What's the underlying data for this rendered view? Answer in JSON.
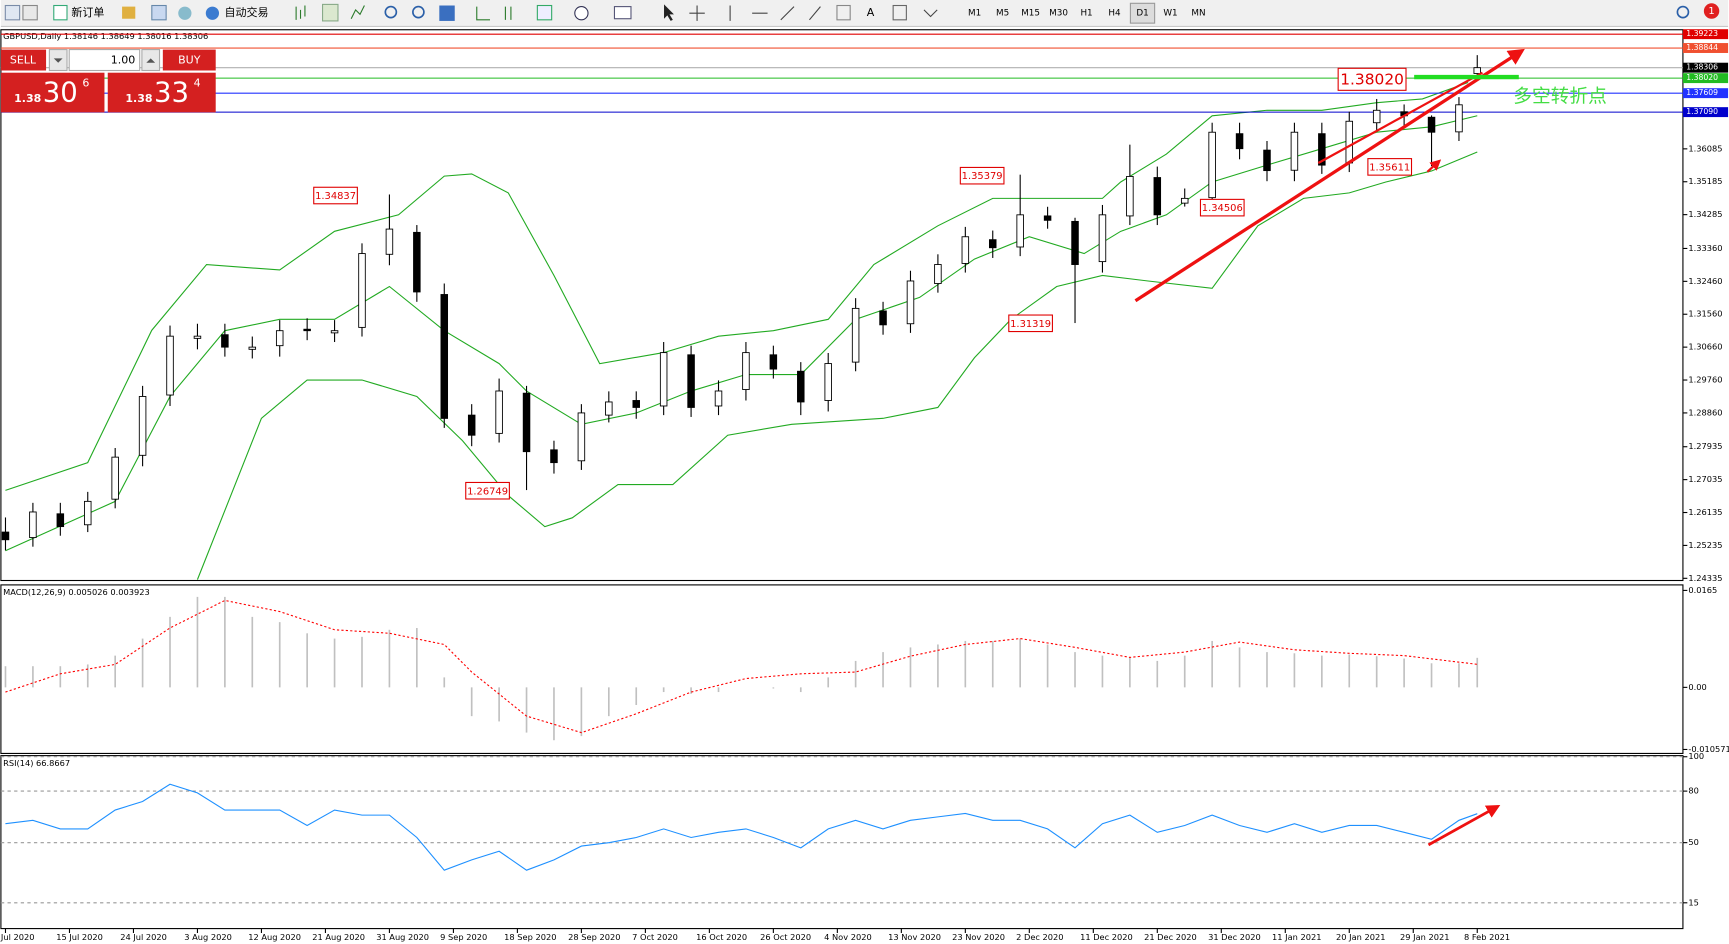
{
  "toolbar": {
    "new_order": "新订单",
    "auto_trading": "自动交易",
    "text_tool": "A",
    "timeframes": [
      "M1",
      "M5",
      "M15",
      "M30",
      "H1",
      "H4",
      "D1",
      "W1",
      "MN"
    ],
    "notifications": "1"
  },
  "trade_panel": {
    "sell": "SELL",
    "buy": "BUY",
    "lots": "1.00",
    "bid": {
      "big_figure": "1.38",
      "pips": "30",
      "fraction": "6"
    },
    "ask": {
      "big_figure": "1.38",
      "pips": "33",
      "fraction": "4"
    }
  },
  "chart_data": [
    {
      "type": "candlestick",
      "title": "GBPUSD,Daily 1.38146 1.38649 1.38016 1.38306",
      "x": [
        0,
        3,
        6,
        9,
        12,
        15,
        18,
        21,
        24,
        27,
        30,
        33,
        36,
        39,
        42,
        45,
        48,
        51,
        54,
        57,
        60,
        63,
        66,
        69,
        72,
        75,
        78,
        81,
        84,
        87,
        90,
        93,
        96,
        99,
        102,
        105,
        108,
        111,
        114,
        117,
        120,
        123,
        126,
        129,
        132,
        135,
        138,
        141,
        144,
        147,
        150,
        153,
        156,
        159,
        161
      ],
      "open": [
        1.256,
        1.2545,
        1.261,
        1.258,
        1.265,
        1.277,
        1.2935,
        1.309,
        1.31,
        1.306,
        1.307,
        1.3115,
        1.3105,
        1.312,
        1.332,
        1.338,
        1.321,
        1.288,
        1.283,
        1.294,
        1.2785,
        1.2755,
        1.288,
        1.292,
        1.2905,
        1.3045,
        1.2905,
        1.295,
        1.3045,
        1.3,
        1.292,
        1.3025,
        1.3165,
        1.313,
        1.324,
        1.3295,
        1.336,
        1.334,
        1.3425,
        1.341,
        1.33,
        1.3425,
        1.353,
        1.346,
        1.3475,
        1.365,
        1.3605,
        1.355,
        1.365,
        1.357,
        1.368,
        1.371,
        1.3695,
        1.3655,
        1.38146
      ],
      "high": [
        1.26,
        1.264,
        1.264,
        1.267,
        1.279,
        1.296,
        1.3125,
        1.313,
        1.313,
        1.3095,
        1.314,
        1.3145,
        1.314,
        1.335,
        1.34837,
        1.34,
        1.324,
        1.291,
        1.298,
        1.296,
        1.281,
        1.291,
        1.2945,
        1.2945,
        1.308,
        1.307,
        1.2975,
        1.308,
        1.307,
        1.3025,
        1.305,
        1.32,
        1.319,
        1.3275,
        1.332,
        1.3395,
        1.3385,
        1.35379,
        1.345,
        1.342,
        1.3455,
        1.362,
        1.356,
        1.35,
        1.368,
        1.368,
        1.363,
        1.368,
        1.368,
        1.371,
        1.3745,
        1.373,
        1.37,
        1.375,
        1.38649
      ],
      "low": [
        1.251,
        1.252,
        1.255,
        1.256,
        1.2625,
        1.274,
        1.2905,
        1.306,
        1.304,
        1.3035,
        1.304,
        1.3085,
        1.308,
        1.3095,
        1.329,
        1.319,
        1.2845,
        1.2795,
        1.2805,
        1.26749,
        1.272,
        1.273,
        1.286,
        1.287,
        1.288,
        1.2875,
        1.288,
        1.292,
        1.298,
        1.288,
        1.289,
        1.3,
        1.31,
        1.3105,
        1.3215,
        1.327,
        1.331,
        1.3315,
        1.339,
        1.31319,
        1.327,
        1.34,
        1.34,
        1.34506,
        1.345,
        1.358,
        1.352,
        1.352,
        1.354,
        1.3545,
        1.3655,
        1.367,
        1.35611,
        1.363,
        1.38016
      ],
      "close": [
        1.2539,
        1.2615,
        1.2575,
        1.2644,
        1.2765,
        1.2931,
        1.3096,
        1.3096,
        1.3066,
        1.3066,
        1.3111,
        1.3111,
        1.3111,
        1.3322,
        1.3389,
        1.3217,
        1.2871,
        1.2825,
        1.2946,
        1.278,
        1.275,
        1.2886,
        1.2916,
        1.2901,
        1.3051,
        1.2901,
        1.2946,
        1.3051,
        1.3006,
        1.2916,
        1.3021,
        1.3172,
        1.3127,
        1.3247,
        1.3292,
        1.3368,
        1.3338,
        1.3428,
        1.3413,
        1.3292,
        1.3428,
        1.3533,
        1.3428,
        1.3473,
        1.3654,
        1.3609,
        1.3549,
        1.3654,
        1.3564,
        1.3684,
        1.3714,
        1.3699,
        1.3654,
        1.3729,
        1.38306
      ],
      "up_color": "#ffffff",
      "down_color": "#000000",
      "bands": [
        {
          "color": "#22aa22",
          "x": [
            0,
            9,
            16,
            22,
            30,
            36,
            43,
            48,
            51,
            55,
            60,
            65,
            72,
            78,
            84,
            90,
            95,
            102,
            108,
            114,
            120,
            122,
            127,
            132,
            138,
            144,
            150,
            155,
            160
          ],
          "values": [
            1.2674,
            1.275,
            1.3112,
            1.3292,
            1.3277,
            1.3383,
            1.3428,
            1.3534,
            1.354,
            1.3488,
            1.3262,
            1.3021,
            1.3051,
            1.3096,
            1.3111,
            1.3142,
            1.3292,
            1.3398,
            1.3473,
            1.3473,
            1.3473,
            1.3518,
            1.3594,
            1.3699,
            1.3714,
            1.3714,
            1.3735,
            1.3745,
            1.379
          ]
        },
        {
          "color": "#22aa22",
          "x": [
            0,
            12,
            18,
            24,
            30,
            36,
            42,
            48,
            54,
            57,
            63,
            69,
            75,
            81,
            87,
            93,
            100,
            106,
            112,
            118,
            122,
            127,
            132,
            138,
            144,
            150,
            156,
            161
          ],
          "values": [
            1.2509,
            1.2644,
            1.2931,
            1.3111,
            1.3142,
            1.3142,
            1.3232,
            1.3111,
            1.3021,
            1.2946,
            1.2855,
            1.2886,
            1.2946,
            1.2991,
            1.2991,
            1.3142,
            1.3202,
            1.3307,
            1.3368,
            1.3322,
            1.3383,
            1.3428,
            1.3518,
            1.3564,
            1.3609,
            1.3654,
            1.3669,
            1.3699
          ]
        },
        {
          "color": "#22aa22",
          "x": [
            21,
            28,
            33,
            39,
            45,
            50,
            55,
            59,
            62,
            67,
            73,
            79,
            86,
            96,
            102,
            106,
            110,
            115,
            120,
            125,
            132,
            137,
            142,
            147,
            151,
            156,
            161
          ],
          "values": [
            1.243,
            1.2871,
            1.2976,
            1.2976,
            1.2931,
            1.281,
            1.266,
            1.2575,
            1.2599,
            1.269,
            1.269,
            1.2825,
            1.2855,
            1.2871,
            1.2901,
            1.3037,
            1.3142,
            1.3232,
            1.3262,
            1.3247,
            1.3227,
            1.3398,
            1.3473,
            1.3488,
            1.3518,
            1.3548,
            1.36
          ]
        }
      ],
      "levels": [
        {
          "value": 1.39223,
          "color": "#e00000"
        },
        {
          "value": 1.38844,
          "color": "#f05030"
        },
        {
          "value": 1.38306,
          "color": "#000000",
          "line_color": "#b0b0b0"
        },
        {
          "value": 1.3802,
          "label": "1.38020",
          "color": "#22bb22"
        },
        {
          "value": 1.37609,
          "color": "#2233ff"
        },
        {
          "value": 1.3709,
          "label": "1.37090",
          "color": "#0000cc"
        }
      ],
      "annotations": [
        "1.34837",
        "1.26749",
        "1.35379",
        "1.31319",
        "1.34506",
        "1.35611",
        "1.38020"
      ],
      "note": "多空转折点",
      "xlim": [
        -0.5,
        183.5
      ],
      "ylim": [
        1.24275,
        1.39344
      ],
      "yticks": [
        1.24335,
        1.25235,
        1.26135,
        1.27035,
        1.27935,
        {
          "value": 1.2886,
          "label": "1.28860"
        },
        {
          "value": 1.2976,
          "label": "1.29760"
        },
        {
          "value": 1.3066,
          "label": "1.30660"
        },
        {
          "value": 1.3156,
          "label": "1.31560"
        },
        {
          "value": 1.3246,
          "label": "1.32460"
        },
        {
          "value": 1.3336,
          "label": "1.33360"
        },
        1.34285,
        1.35185,
        1.36085
      ]
    },
    {
      "type": "macd",
      "title": "MACD(12,26,9) 0.005026 0.003923",
      "x": [
        0,
        3,
        6,
        9,
        12,
        15,
        18,
        21,
        24,
        27,
        30,
        33,
        36,
        39,
        42,
        45,
        48,
        51,
        54,
        57,
        60,
        63,
        66,
        69,
        72,
        75,
        78,
        81,
        84,
        87,
        90,
        93,
        96,
        99,
        102,
        105,
        108,
        111,
        114,
        117,
        120,
        123,
        126,
        129,
        132,
        135,
        138,
        141,
        144,
        147,
        150,
        153,
        156,
        159,
        161
      ],
      "values": [
        0.0036,
        0.0036,
        0.0036,
        0.0039,
        0.0054,
        0.0083,
        0.012,
        0.0154,
        0.0154,
        0.012,
        0.0111,
        0.0092,
        0.0083,
        0.0086,
        0.0098,
        0.0101,
        0.0017,
        -0.0049,
        -0.0058,
        -0.0077,
        -0.009,
        -0.0083,
        -0.0049,
        -0.003,
        -0.0008,
        -0.0011,
        -0.0008,
        0,
        -0.0002,
        -0.0008,
        0.0017,
        0.0045,
        0.006,
        0.0068,
        0.0073,
        0.0079,
        0.0079,
        0.0083,
        0.0073,
        0.006,
        0.0054,
        0.0051,
        0.0045,
        0.0054,
        0.0079,
        0.0068,
        0.006,
        0.0058,
        0.0054,
        0.0056,
        0.0053,
        0.0049,
        0.0041,
        0.0041,
        0.005026
      ],
      "color": "#c0c0c0",
      "signal": {
        "color": "#ff0000",
        "x": [
          0,
          6,
          12,
          18,
          24,
          30,
          36,
          42,
          48,
          51,
          57,
          63,
          69,
          75,
          81,
          87,
          93,
          99,
          105,
          111,
          117,
          123,
          129,
          135,
          141,
          147,
          153,
          161
        ],
        "values": [
          -0.0008,
          0.0023,
          0.0039,
          0.0101,
          0.0148,
          0.0129,
          0.0098,
          0.0092,
          0.0073,
          0.0026,
          -0.0049,
          -0.0077,
          -0.0045,
          -0.0008,
          0.0015,
          0.0023,
          0.0026,
          0.0053,
          0.0073,
          0.0083,
          0.0068,
          0.0051,
          0.006,
          0.0077,
          0.0064,
          0.0058,
          0.0054,
          0.003923
        ]
      },
      "xlim": [
        -0.5,
        183.5
      ],
      "ylim": [
        -0.01106,
        0.01725
      ],
      "yticks": [
        0.0165,
        {
          "value": 0,
          "label": "0.00"
        },
        -0.010571
      ]
    },
    {
      "type": "line",
      "title": "RSI(14) 66.8667",
      "x": [
        0,
        3,
        6,
        9,
        12,
        15,
        18,
        21,
        24,
        27,
        30,
        33,
        36,
        39,
        42,
        45,
        48,
        51,
        54,
        57,
        60,
        63,
        66,
        69,
        72,
        75,
        78,
        81,
        84,
        87,
        90,
        93,
        96,
        99,
        102,
        105,
        108,
        111,
        114,
        117,
        120,
        123,
        126,
        129,
        132,
        135,
        138,
        141,
        144,
        147,
        150,
        153,
        156,
        159,
        161
      ],
      "values": [
        61,
        63,
        58,
        58,
        69,
        74,
        84,
        79,
        69,
        69,
        69,
        60,
        69,
        66,
        66,
        53,
        34,
        40,
        45,
        34,
        40,
        48,
        50,
        53,
        58,
        53,
        56,
        58,
        53,
        47,
        58,
        63,
        58,
        63,
        65,
        67,
        63,
        63,
        58,
        47,
        61,
        66,
        56,
        60,
        66,
        60,
        56,
        61,
        56,
        60,
        60,
        56,
        52,
        63,
        66.8667
      ],
      "color": "#1e90ff",
      "grid": true,
      "xlim": [
        -0.5,
        183.5
      ],
      "ylim": [
        0,
        100
      ],
      "yticks": [
        100,
        80,
        50,
        15
      ],
      "xticks": [
        {
          "value": 0,
          "label": "Jul 2020"
        },
        {
          "value": 7,
          "label": "15 Jul 2020"
        },
        {
          "value": 14,
          "label": "24 Jul 2020"
        },
        {
          "value": 21,
          "label": "3 Aug 2020"
        },
        {
          "value": 28,
          "label": "12 Aug 2020"
        },
        {
          "value": 35,
          "label": "21 Aug 2020"
        },
        {
          "value": 42,
          "label": "31 Aug 2020"
        },
        {
          "value": 49,
          "label": "9 Sep 2020"
        },
        {
          "value": 56,
          "label": "18 Sep 2020"
        },
        {
          "value": 63,
          "label": "28 Sep 2020"
        },
        {
          "value": 70,
          "label": "7 Oct 2020"
        },
        {
          "value": 77,
          "label": "16 Oct 2020"
        },
        {
          "value": 84,
          "label": "26 Oct 2020"
        },
        {
          "value": 91,
          "label": "4 Nov 2020"
        },
        {
          "value": 98,
          "label": "13 Nov 2020"
        },
        {
          "value": 105,
          "label": "23 Nov 2020"
        },
        {
          "value": 112,
          "label": "2 Dec 2020"
        },
        {
          "value": 119,
          "label": "11 Dec 2020"
        },
        {
          "value": 126,
          "label": "21 Dec 2020"
        },
        {
          "value": 133,
          "label": "31 Dec 2020"
        },
        {
          "value": 140,
          "label": "11 Jan 2021"
        },
        {
          "value": 147,
          "label": "20 Jan 2021"
        },
        {
          "value": 154,
          "label": "29 Jan 2021"
        },
        {
          "value": 161,
          "label": "8 Feb 2021"
        }
      ]
    }
  ]
}
